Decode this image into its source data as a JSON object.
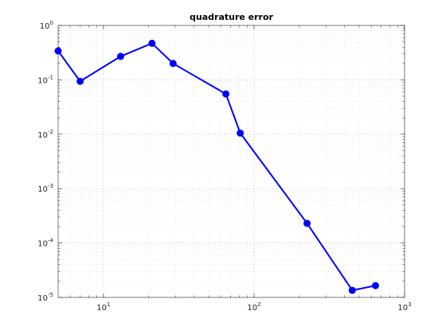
{
  "chart_data": {
    "type": "line",
    "title": "quadrature error",
    "xlabel": "",
    "ylabel": "",
    "xscale": "log",
    "yscale": "log",
    "xlim": [
      5,
      1000
    ],
    "ylim": [
      1e-05,
      1
    ],
    "grid": true,
    "x_ticks": [
      {
        "value": 10,
        "base": "10",
        "exp": "1"
      },
      {
        "value": 100,
        "base": "10",
        "exp": "2"
      },
      {
        "value": 1000,
        "base": "10",
        "exp": "3"
      }
    ],
    "y_ticks": [
      {
        "value": 1,
        "base": "10",
        "exp": "0"
      },
      {
        "value": 0.1,
        "base": "10",
        "exp": "-1"
      },
      {
        "value": 0.01,
        "base": "10",
        "exp": "-2"
      },
      {
        "value": 0.001,
        "base": "10",
        "exp": "-3"
      },
      {
        "value": 0.0001,
        "base": "10",
        "exp": "-4"
      },
      {
        "value": 1e-05,
        "base": "10",
        "exp": "-5"
      }
    ],
    "series": [
      {
        "color": "#0000ff",
        "marker": "circle",
        "x": [
          5,
          7,
          13,
          21,
          29,
          65,
          81,
          225,
          449,
          641
        ],
        "y": [
          0.34,
          0.094,
          0.27,
          0.47,
          0.2,
          0.055,
          0.0105,
          0.00023,
          1.35e-05,
          1.65e-05
        ]
      }
    ]
  }
}
